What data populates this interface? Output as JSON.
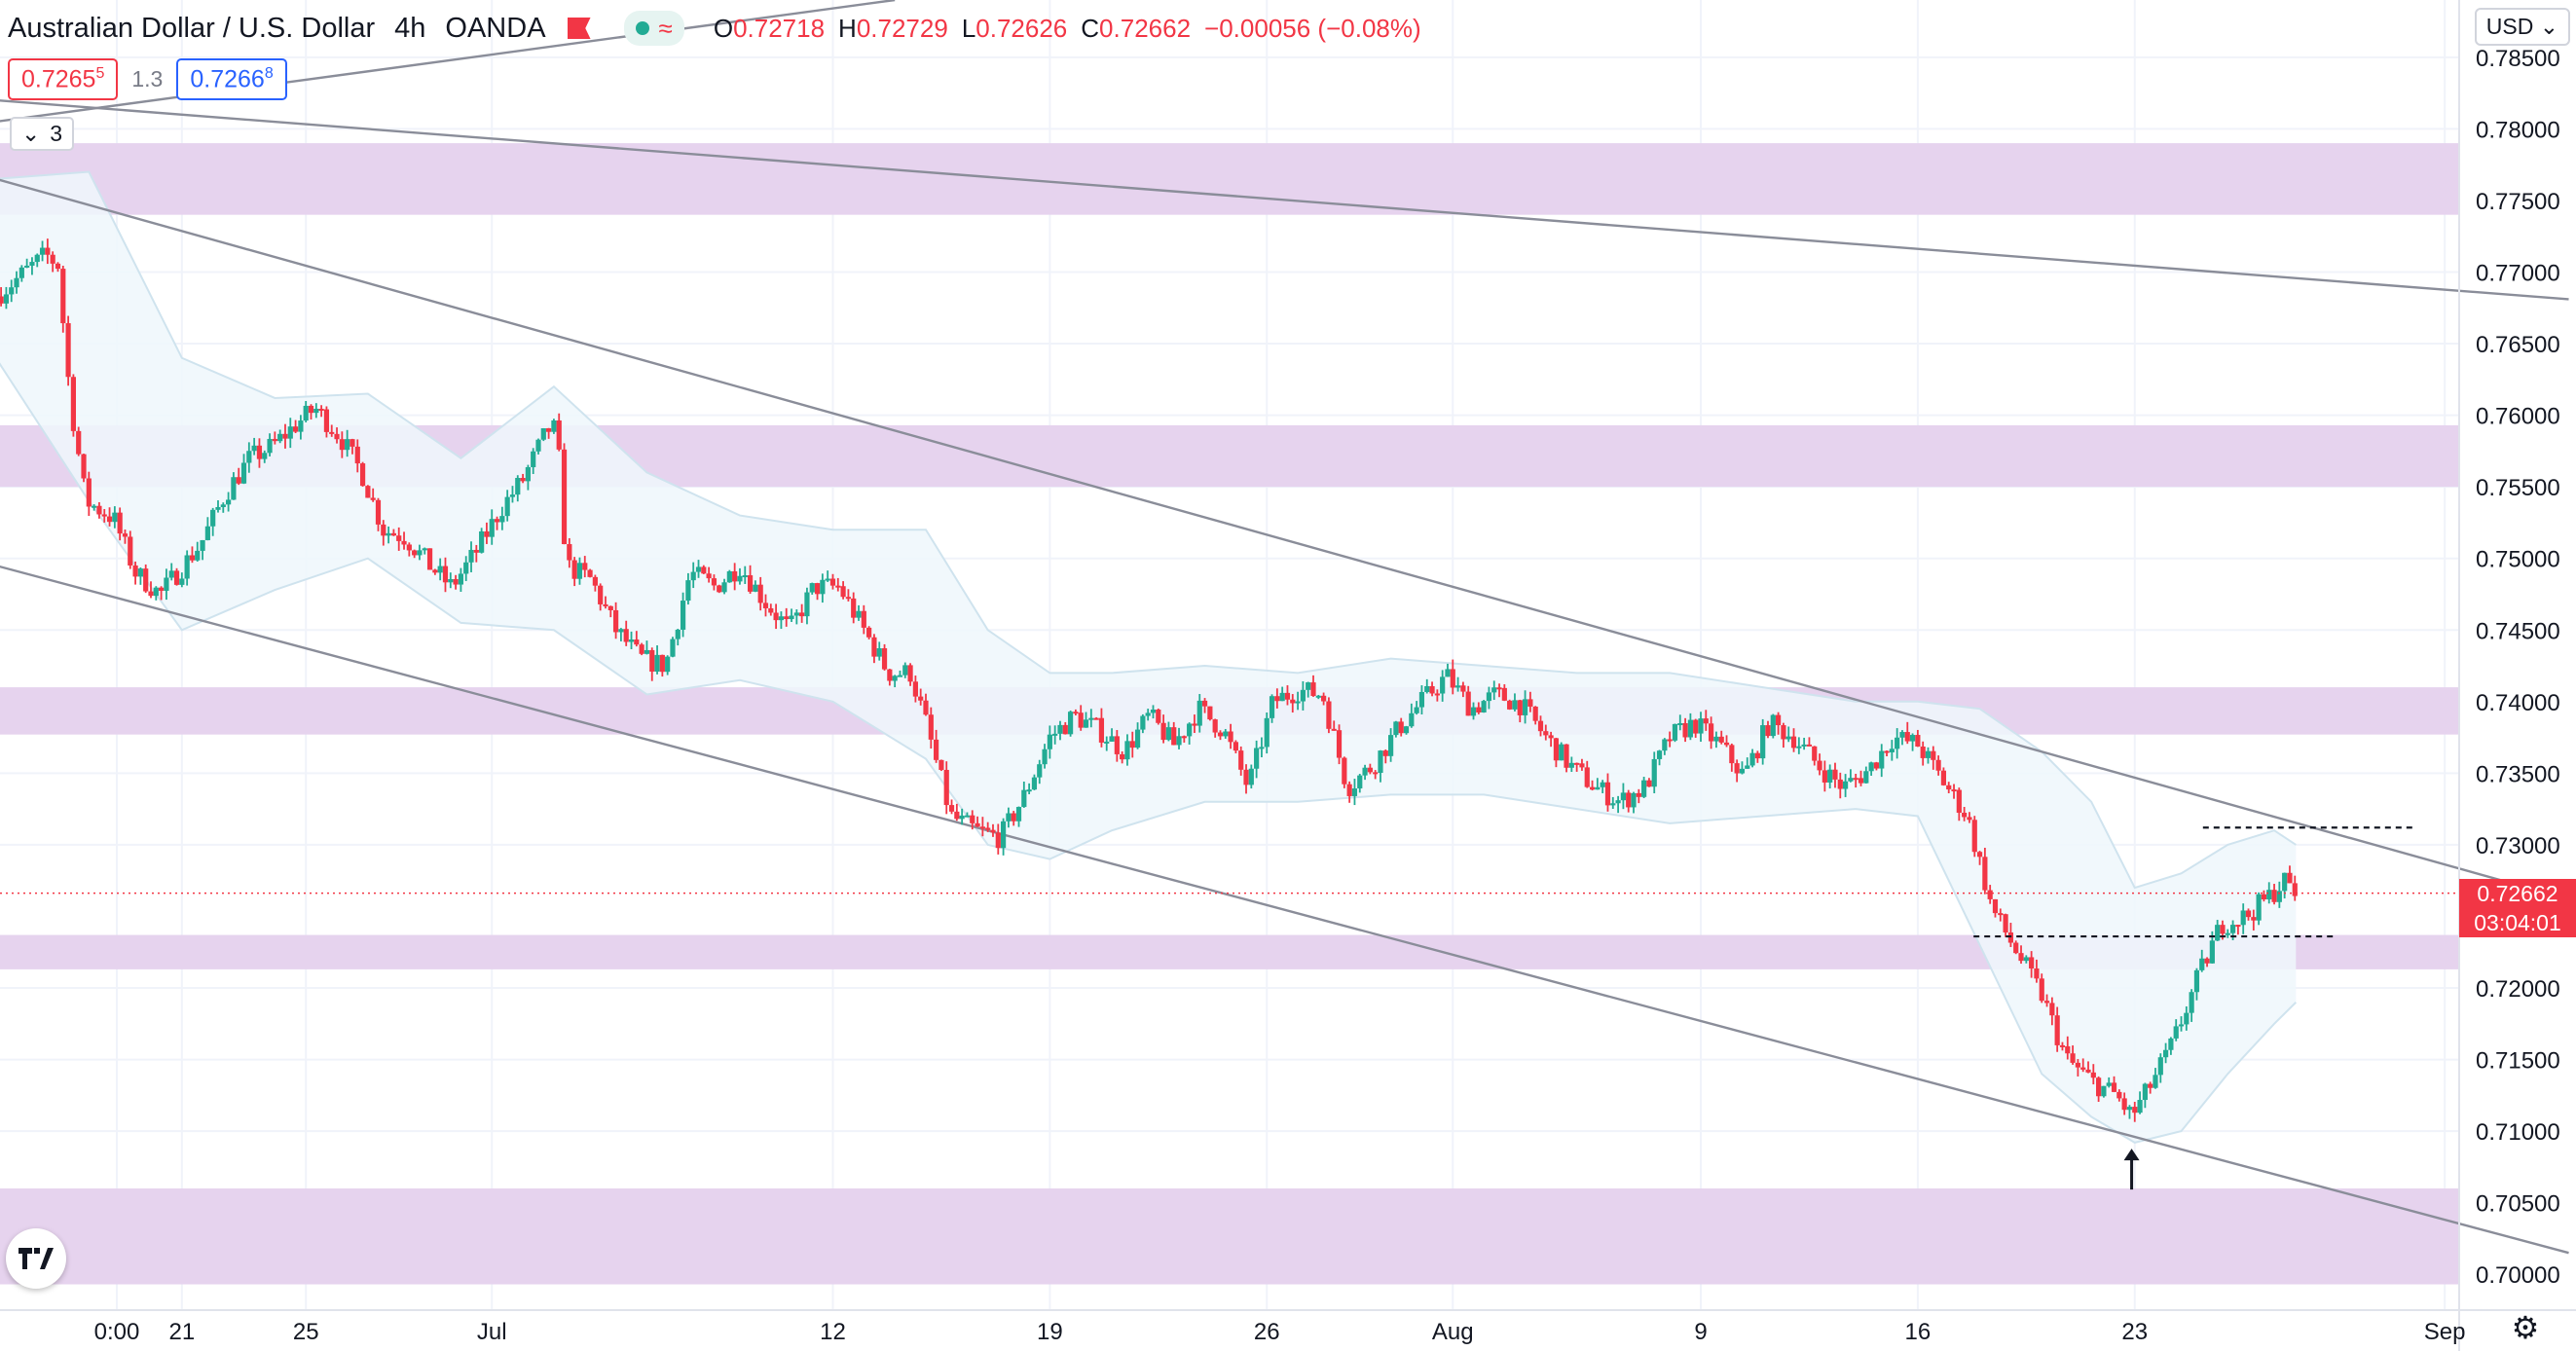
{
  "header": {
    "symbol": "Australian Dollar / U.S. Dollar",
    "interval": "4h",
    "broker": "OANDA",
    "ohlc": [
      {
        "k": "O",
        "v": "0.72718"
      },
      {
        "k": "H",
        "v": "0.72729"
      },
      {
        "k": "L",
        "v": "0.72626"
      },
      {
        "k": "C",
        "v": "0.72662"
      },
      {
        "k": "",
        "v": "−0.00056 (−0.08%)"
      }
    ]
  },
  "trade": {
    "sell_main": "0.7265",
    "sell_sup": "5",
    "spread": "1.3",
    "buy_main": "0.7266",
    "buy_sup": "8"
  },
  "indicators_toggle": {
    "count": "3"
  },
  "currency": "USD",
  "price_label": {
    "price": "0.72662",
    "countdown": "03:04:01"
  },
  "colors": {
    "up": "#22ab94",
    "down": "#f23645",
    "zone": "#e6d3ee",
    "band": "#eef7fb",
    "line": "#8a8d99"
  },
  "icons": [
    "chevron-down-icon",
    "tradingview-logo-icon",
    "gear-icon",
    "arrow-up-icon",
    "flag-icon"
  ],
  "chart_data": {
    "type": "candlestick",
    "ylim": [
      0.6975,
      0.789
    ],
    "y_ticks": [
      {
        "v": 0.785,
        "t": "0.78500"
      },
      {
        "v": 0.78,
        "t": "0.78000"
      },
      {
        "v": 0.775,
        "t": "0.77500"
      },
      {
        "v": 0.77,
        "t": "0.77000"
      },
      {
        "v": 0.765,
        "t": "0.76500"
      },
      {
        "v": 0.76,
        "t": "0.76000"
      },
      {
        "v": 0.755,
        "t": "0.75500"
      },
      {
        "v": 0.75,
        "t": "0.75000"
      },
      {
        "v": 0.745,
        "t": "0.74500"
      },
      {
        "v": 0.74,
        "t": "0.74000"
      },
      {
        "v": 0.735,
        "t": "0.73500"
      },
      {
        "v": 0.73,
        "t": "0.73000"
      },
      {
        "v": 0.72,
        "t": "0.72000"
      },
      {
        "v": 0.715,
        "t": "0.71500"
      },
      {
        "v": 0.71,
        "t": "0.71000"
      },
      {
        "v": 0.705,
        "t": "0.70500"
      },
      {
        "v": 0.7,
        "t": "0.70000"
      }
    ],
    "x_ticks": [
      {
        "d": -1.1,
        "t": "0:00"
      },
      {
        "d": 1,
        "t": "21"
      },
      {
        "d": 5,
        "t": "25"
      },
      {
        "d": 11,
        "t": "Jul"
      },
      {
        "d": 22,
        "t": "12"
      },
      {
        "d": 29,
        "t": "19"
      },
      {
        "d": 36,
        "t": "26"
      },
      {
        "d": 42,
        "t": "Aug"
      },
      {
        "d": 50,
        "t": "9"
      },
      {
        "d": 57,
        "t": "16"
      },
      {
        "d": 64,
        "t": "23"
      },
      {
        "d": 74,
        "t": "Sep"
      }
    ],
    "zones": [
      [
        0.774,
        0.779
      ],
      [
        0.755,
        0.7593
      ],
      [
        0.7377,
        0.741
      ],
      [
        0.7213,
        0.7237
      ],
      [
        0.6993,
        0.706
      ]
    ],
    "trend_lines": [
      {
        "d0": -5,
        "p0": 0.7765,
        "d1": 78,
        "p1": 0.7262
      },
      {
        "d0": -5,
        "p0": 0.7495,
        "d1": 78,
        "p1": 0.7015
      },
      {
        "d0": -5,
        "p0": 0.782,
        "d1": 78,
        "p1": 0.7681
      },
      {
        "d0": -5,
        "p0": 0.7805,
        "d1": 24,
        "p1": 0.789
      }
    ],
    "dashed_levels": [
      {
        "d0": 58.8,
        "d1": 70.5,
        "p": 0.7236
      },
      {
        "d0": 66.2,
        "d1": 73.0,
        "p": 0.7312
      }
    ],
    "last_price_line": 0.72662,
    "annotation_arrow": {
      "d": 63.9,
      "p": 0.71
    },
    "anchors": [
      [
        -5,
        0.7683
      ],
      [
        -3.4,
        0.7712
      ],
      [
        -3,
        0.7705
      ],
      [
        -2.6,
        0.761
      ],
      [
        -2.1,
        0.754
      ],
      [
        -1.2,
        0.7528
      ],
      [
        -0.5,
        0.749
      ],
      [
        0.3,
        0.7475
      ],
      [
        1.6,
        0.751
      ],
      [
        2.4,
        0.7545
      ],
      [
        3.2,
        0.757
      ],
      [
        3.9,
        0.7578
      ],
      [
        4.6,
        0.7592
      ],
      [
        5.3,
        0.7605
      ],
      [
        6.1,
        0.7585
      ],
      [
        6.8,
        0.756
      ],
      [
        7.5,
        0.752
      ],
      [
        8.2,
        0.7515
      ],
      [
        9.0,
        0.7495
      ],
      [
        9.7,
        0.748
      ],
      [
        10.5,
        0.7505
      ],
      [
        11.3,
        0.7535
      ],
      [
        12.0,
        0.7555
      ],
      [
        12.8,
        0.759
      ],
      [
        13.1,
        0.759
      ],
      [
        13.4,
        0.7495
      ],
      [
        14.2,
        0.7485
      ],
      [
        15.0,
        0.745
      ],
      [
        15.8,
        0.743
      ],
      [
        16.6,
        0.7425
      ],
      [
        17.4,
        0.749
      ],
      [
        18.2,
        0.748
      ],
      [
        19.0,
        0.7495
      ],
      [
        19.8,
        0.747
      ],
      [
        20.6,
        0.745
      ],
      [
        21.4,
        0.748
      ],
      [
        22.2,
        0.748
      ],
      [
        23.0,
        0.745
      ],
      [
        23.8,
        0.742
      ],
      [
        24.5,
        0.742
      ],
      [
        25.0,
        0.7385
      ],
      [
        25.8,
        0.732
      ],
      [
        26.6,
        0.731
      ],
      [
        27.4,
        0.7305
      ],
      [
        28.2,
        0.7335
      ],
      [
        29.0,
        0.7375
      ],
      [
        29.8,
        0.739
      ],
      [
        30.6,
        0.738
      ],
      [
        31.4,
        0.7365
      ],
      [
        32.2,
        0.739
      ],
      [
        33.0,
        0.737
      ],
      [
        33.8,
        0.7395
      ],
      [
        34.6,
        0.738
      ],
      [
        35.4,
        0.734
      ],
      [
        36.2,
        0.74
      ],
      [
        37.0,
        0.7408
      ],
      [
        37.8,
        0.7405
      ],
      [
        38.6,
        0.734
      ],
      [
        39.4,
        0.7355
      ],
      [
        40.2,
        0.738
      ],
      [
        41.0,
        0.74
      ],
      [
        41.8,
        0.7418
      ],
      [
        42.6,
        0.7395
      ],
      [
        43.4,
        0.7405
      ],
      [
        44.2,
        0.7398
      ],
      [
        45.0,
        0.7375
      ],
      [
        45.8,
        0.7355
      ],
      [
        46.6,
        0.734
      ],
      [
        47.4,
        0.733
      ],
      [
        48.2,
        0.734
      ],
      [
        49.0,
        0.7375
      ],
      [
        49.8,
        0.7385
      ],
      [
        50.6,
        0.737
      ],
      [
        51.4,
        0.7348
      ],
      [
        52.2,
        0.7385
      ],
      [
        53.0,
        0.7375
      ],
      [
        53.8,
        0.7355
      ],
      [
        54.6,
        0.734
      ],
      [
        55.4,
        0.7352
      ],
      [
        56.2,
        0.7375
      ],
      [
        57.0,
        0.737
      ],
      [
        57.8,
        0.7345
      ],
      [
        58.6,
        0.732
      ],
      [
        59.4,
        0.7255
      ],
      [
        60.2,
        0.7225
      ],
      [
        61.0,
        0.7195
      ],
      [
        61.8,
        0.715
      ],
      [
        62.6,
        0.7135
      ],
      [
        63.4,
        0.7125
      ],
      [
        63.9,
        0.711
      ],
      [
        64.4,
        0.7128
      ],
      [
        65.2,
        0.716
      ],
      [
        66.0,
        0.7205
      ],
      [
        66.8,
        0.7245
      ],
      [
        67.6,
        0.725
      ],
      [
        68.4,
        0.7265
      ],
      [
        68.8,
        0.7275
      ],
      [
        69.2,
        0.7266
      ]
    ],
    "band_upper": [
      [
        -5,
        0.7765
      ],
      [
        -2,
        0.777
      ],
      [
        1,
        0.764
      ],
      [
        4,
        0.7612
      ],
      [
        7,
        0.7615
      ],
      [
        10,
        0.757
      ],
      [
        13,
        0.762
      ],
      [
        16,
        0.756
      ],
      [
        19,
        0.753
      ],
      [
        22,
        0.752
      ],
      [
        25,
        0.752
      ],
      [
        27,
        0.745
      ],
      [
        29,
        0.742
      ],
      [
        31,
        0.742
      ],
      [
        34,
        0.7425
      ],
      [
        37,
        0.742
      ],
      [
        40,
        0.743
      ],
      [
        43,
        0.7425
      ],
      [
        46,
        0.742
      ],
      [
        49,
        0.742
      ],
      [
        52,
        0.741
      ],
      [
        55,
        0.74
      ],
      [
        57,
        0.74
      ],
      [
        59,
        0.7395
      ],
      [
        61,
        0.7365
      ],
      [
        62.6,
        0.733
      ],
      [
        64,
        0.727
      ],
      [
        65.5,
        0.728
      ],
      [
        67,
        0.73
      ],
      [
        68.5,
        0.731
      ],
      [
        69.2,
        0.73
      ]
    ],
    "band_lower": [
      [
        -5,
        0.764
      ],
      [
        -2,
        0.754
      ],
      [
        1,
        0.745
      ],
      [
        4,
        0.7478
      ],
      [
        7,
        0.75
      ],
      [
        10,
        0.7455
      ],
      [
        13,
        0.745
      ],
      [
        16,
        0.7405
      ],
      [
        19,
        0.7415
      ],
      [
        22,
        0.74
      ],
      [
        25,
        0.736
      ],
      [
        27,
        0.73
      ],
      [
        29,
        0.729
      ],
      [
        31,
        0.731
      ],
      [
        34,
        0.733
      ],
      [
        37,
        0.733
      ],
      [
        40,
        0.7335
      ],
      [
        43,
        0.7335
      ],
      [
        46,
        0.7325
      ],
      [
        49,
        0.7315
      ],
      [
        52,
        0.732
      ],
      [
        55,
        0.7325
      ],
      [
        57,
        0.732
      ],
      [
        59,
        0.723
      ],
      [
        61,
        0.714
      ],
      [
        62.6,
        0.711
      ],
      [
        64,
        0.7092
      ],
      [
        65.5,
        0.71
      ],
      [
        67,
        0.714
      ],
      [
        68.5,
        0.7175
      ],
      [
        69.2,
        0.719
      ]
    ]
  }
}
